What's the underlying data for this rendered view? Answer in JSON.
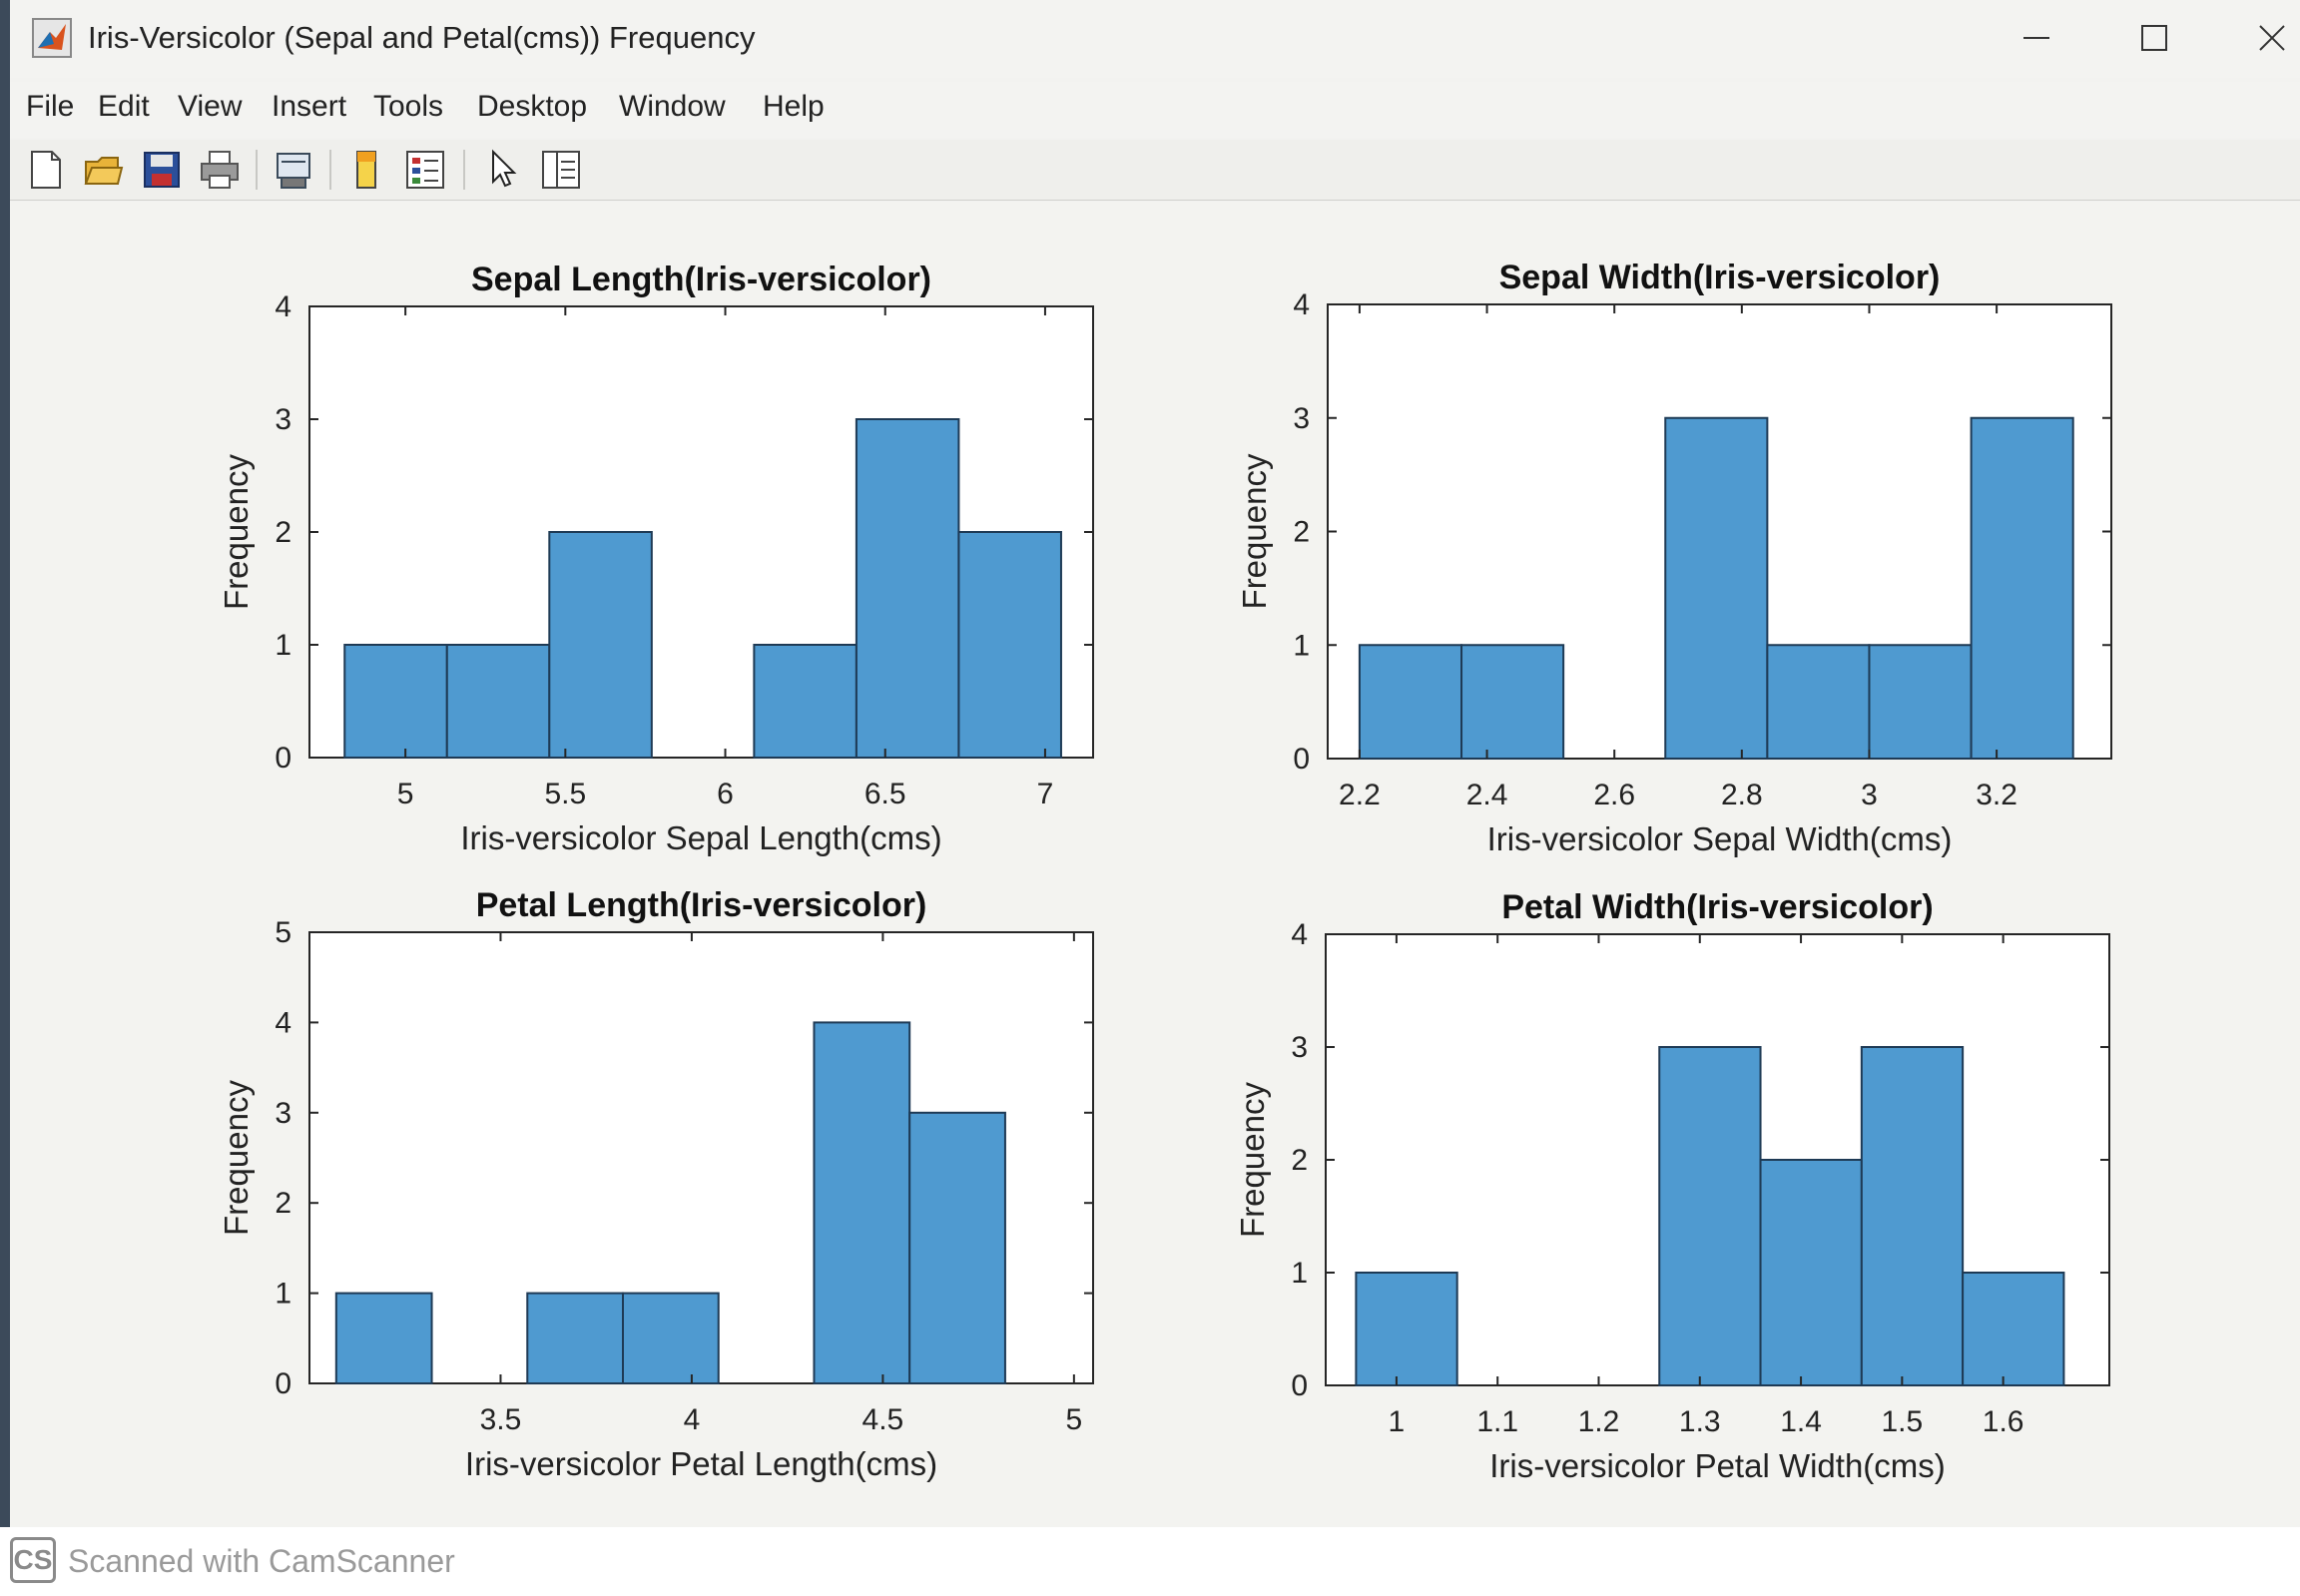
{
  "window": {
    "title": "Iris-Versicolor (Sepal and Petal(cms)) Frequency",
    "app_icon": "matlab-icon",
    "minimize_icon": "minimize-icon",
    "maximize_icon": "maximize-icon",
    "close_icon": "close-icon"
  },
  "menu": {
    "items": [
      "File",
      "Edit",
      "View",
      "Insert",
      "Tools",
      "Desktop",
      "Window",
      "Help"
    ]
  },
  "toolbar": {
    "icons": [
      "new-figure-icon",
      "open-file-icon",
      "save-icon",
      "print-icon",
      "print-preview-icon",
      "colorbar-icon",
      "legend-icon",
      "pointer-icon",
      "property-editor-icon"
    ]
  },
  "footer": {
    "logo": "CS",
    "text": "Scanned with CamScanner"
  },
  "colors": {
    "bar_fill": "#4f9ad0",
    "bar_edge": "#1e3a55",
    "axes_bg": "#ffffff"
  },
  "chart_data": [
    {
      "type": "bar",
      "title": "Sepal Length(Iris-versicolor)",
      "xlabel": "Iris-versicolor Sepal Length(cms)",
      "ylabel": "Frequency",
      "xlim": [
        4.7,
        7.15
      ],
      "ylim": [
        0,
        4
      ],
      "xticks": [
        5,
        5.5,
        6,
        6.5,
        7
      ],
      "xtick_labels": [
        "5",
        "5.5",
        "6",
        "6.5",
        "7"
      ],
      "yticks": [
        0,
        1,
        2,
        3,
        4
      ],
      "ytick_labels": [
        "0",
        "1",
        "2",
        "3",
        "4"
      ],
      "bin_edges": [
        4.81,
        5.13,
        5.45,
        5.77,
        6.09,
        6.41,
        6.73,
        7.05
      ],
      "values": [
        1,
        1,
        2,
        0,
        1,
        3,
        2
      ]
    },
    {
      "type": "bar",
      "title": "Sepal Width(Iris-versicolor)",
      "xlabel": "Iris-versicolor Sepal Width(cms)",
      "ylabel": "Frequency",
      "xlim": [
        2.15,
        3.38
      ],
      "ylim": [
        0,
        4
      ],
      "xticks": [
        2.2,
        2.4,
        2.6,
        2.8,
        3,
        3.2
      ],
      "xtick_labels": [
        "2.2",
        "2.4",
        "2.6",
        "2.8",
        "3",
        "3.2"
      ],
      "yticks": [
        0,
        1,
        2,
        3,
        4
      ],
      "ytick_labels": [
        "0",
        "1",
        "2",
        "3",
        "4"
      ],
      "bin_edges": [
        2.2,
        2.36,
        2.52,
        2.68,
        2.84,
        3.0,
        3.16,
        3.32
      ],
      "values": [
        1,
        1,
        0,
        3,
        1,
        1,
        3
      ]
    },
    {
      "type": "bar",
      "title": "Petal Length(Iris-versicolor)",
      "xlabel": "Iris-versicolor Petal Length(cms)",
      "ylabel": "Frequency",
      "xlim": [
        3.0,
        5.05
      ],
      "ylim": [
        0,
        5
      ],
      "xticks": [
        3.5,
        4,
        4.5,
        5
      ],
      "xtick_labels": [
        "3.5",
        "4",
        "4.5",
        "5"
      ],
      "yticks": [
        0,
        1,
        2,
        3,
        4,
        5
      ],
      "ytick_labels": [
        "0",
        "1",
        "2",
        "3",
        "4",
        "5"
      ],
      "bin_edges": [
        3.07,
        3.32,
        3.57,
        3.82,
        4.07,
        4.32,
        4.57,
        4.82
      ],
      "values": [
        1,
        0,
        1,
        1,
        0,
        4,
        3
      ]
    },
    {
      "type": "bar",
      "title": "Petal Width(Iris-versicolor)",
      "xlabel": "Iris-versicolor Petal Width(cms)",
      "ylabel": "Frequency",
      "xlim": [
        0.93,
        1.705
      ],
      "ylim": [
        0,
        4
      ],
      "xticks": [
        1,
        1.1,
        1.2,
        1.3,
        1.4,
        1.5,
        1.6
      ],
      "xtick_labels": [
        "1",
        "1.1",
        "1.2",
        "1.3",
        "1.4",
        "1.5",
        "1.6"
      ],
      "yticks": [
        0,
        1,
        2,
        3,
        4
      ],
      "ytick_labels": [
        "0",
        "1",
        "2",
        "3",
        "4"
      ],
      "bin_edges": [
        0.96,
        1.06,
        1.16,
        1.26,
        1.36,
        1.46,
        1.56,
        1.66
      ],
      "values": [
        1,
        0,
        0,
        3,
        2,
        3,
        1
      ]
    }
  ]
}
